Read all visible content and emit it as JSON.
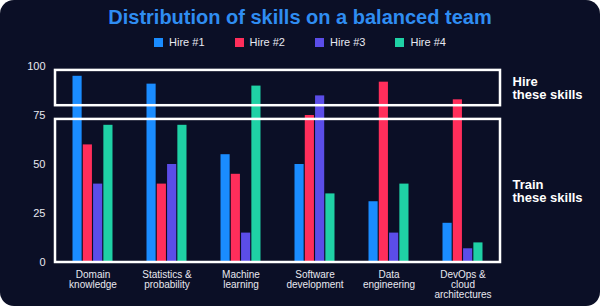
{
  "chart_data": {
    "type": "bar",
    "title": "Distribution of skills on a balanced team",
    "categories": [
      "Domain knowledge",
      "Statistics & probability",
      "Machine learning",
      "Software development",
      "Data engineering",
      "DevOps & cloud architectures"
    ],
    "series": [
      {
        "name": "Hire #1",
        "color": "#1a8cff",
        "values": [
          95,
          91,
          55,
          50,
          31,
          20
        ]
      },
      {
        "name": "Hire #2",
        "color": "#ff2e5b",
        "values": [
          60,
          40,
          45,
          75,
          92,
          83
        ]
      },
      {
        "name": "Hire #3",
        "color": "#5b4de8",
        "values": [
          40,
          50,
          15,
          85,
          15,
          7
        ]
      },
      {
        "name": "Hire #4",
        "color": "#1fd1a5",
        "values": [
          70,
          70,
          90,
          35,
          40,
          10
        ]
      }
    ],
    "ylim": [
      0,
      100
    ],
    "yticks": [
      0,
      25,
      50,
      75,
      100
    ],
    "grid": false,
    "legend": "top",
    "annotations": [
      {
        "text": "Hire these skills",
        "range": [
          80,
          98
        ]
      },
      {
        "text": "Train these skills",
        "range": [
          0,
          73
        ]
      }
    ]
  }
}
